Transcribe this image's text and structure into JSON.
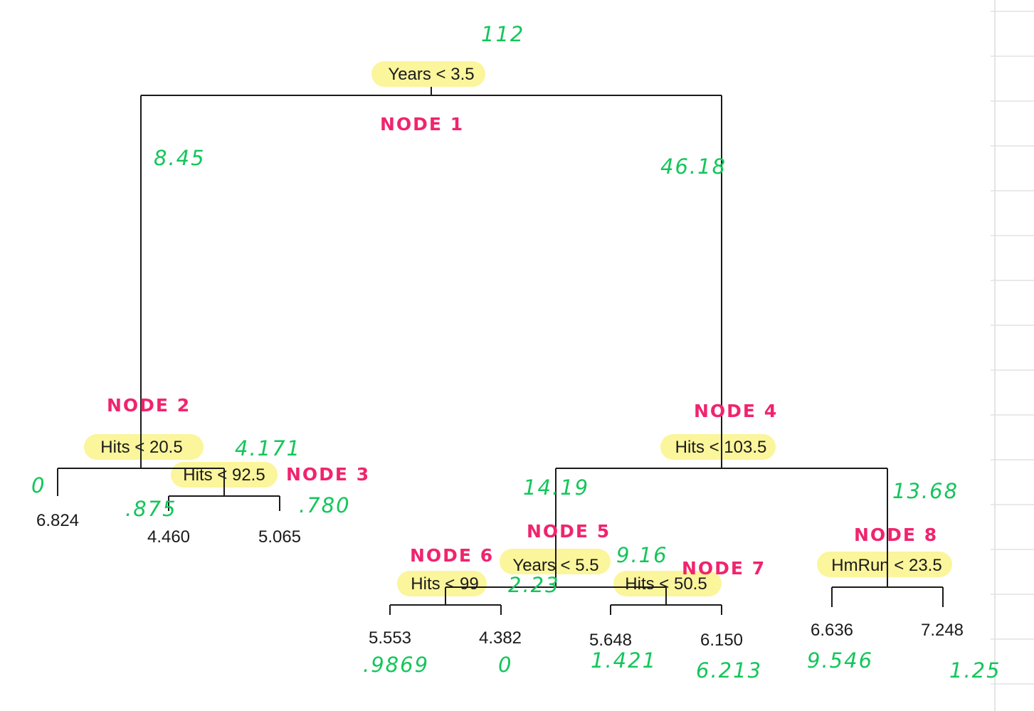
{
  "colors": {
    "highlight": "#fbf59c",
    "annotation_green": "#12c65a",
    "annotation_pink": "#f0246e",
    "tree_line": "#1a1a1a"
  },
  "tree": {
    "splits": {
      "root": "Years < 3.5",
      "left": "Hits < 20.5",
      "left_sub": "Hits < 92.5",
      "right": "Hits < 103.5",
      "right_left": "Years < 5.5",
      "right_left_left": "Hits < 99",
      "right_left_right": "Hits < 50.5",
      "right_right": "HmRun < 23.5"
    },
    "leaves": {
      "l1": "6.824",
      "l2": "4.460",
      "l3": "5.065",
      "l4": "5.553",
      "l5": "4.382",
      "l6": "5.648",
      "l7": "6.150",
      "l8": "6.636",
      "l9": "7.248"
    }
  },
  "annotations": {
    "nodes": {
      "n1": "NODE 1",
      "n2": "NODE 2",
      "n3": "NODE 3",
      "n4": "NODE 4",
      "n5": "NODE 5",
      "n6": "NODE 6",
      "n7": "NODE 7",
      "n8": "NODE 8"
    },
    "values": {
      "root_total": "112",
      "left_branch": "8.45",
      "right_branch": "46.18",
      "node3_value": "4.171",
      "leaf_6824": "0",
      "leaf_4460": ".875",
      "leaf_5065": ".780",
      "node5_left": "14.19",
      "node8_value": "13.68",
      "node6_value": "2.23",
      "node7_value": "9.16",
      "leaf_5553": ".9869",
      "leaf_4382": "0",
      "leaf_5648": "1.421",
      "leaf_6150": "6.213",
      "leaf_6636": "9.546",
      "leaf_7248": "1.25"
    }
  }
}
